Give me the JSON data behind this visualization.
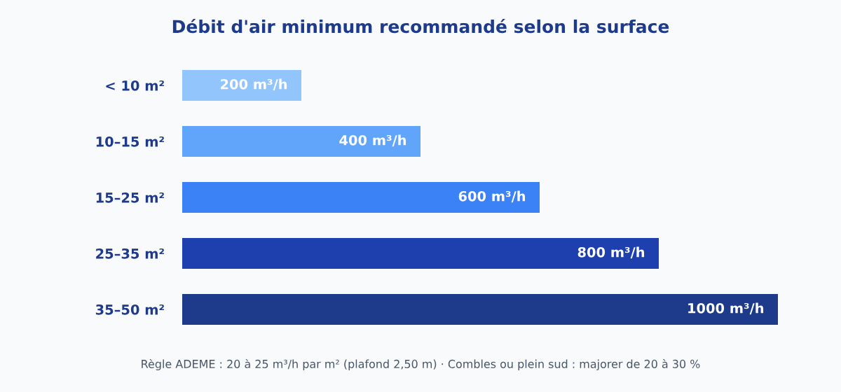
{
  "chart_data": {
    "type": "bar",
    "orientation": "horizontal",
    "title": "Débit d'air minimum recommandé selon la surface",
    "categories": [
      "< 10 m²",
      "10–15 m²",
      "15–25 m²",
      "25–35 m²",
      "35–50 m²"
    ],
    "values": [
      200,
      400,
      600,
      800,
      1000
    ],
    "colors": [
      "#93c5fd",
      "#60a5fa",
      "#3b82f6",
      "#1e40af",
      "#1e3a8a"
    ],
    "value_labels": [
      "200 m³/h",
      "400 m³/h",
      "600 m³/h",
      "800 m³/h",
      "1000 m³/h"
    ],
    "xlim": [
      0,
      1000
    ],
    "tick_labels": "y",
    "grid": false,
    "legend": false,
    "annotations": [
      "Règle ADEME : 20 à 25 m³/h par m² (plafond 2,50 m) · Combles ou plein sud : majorer de 20 à 30 %"
    ]
  }
}
